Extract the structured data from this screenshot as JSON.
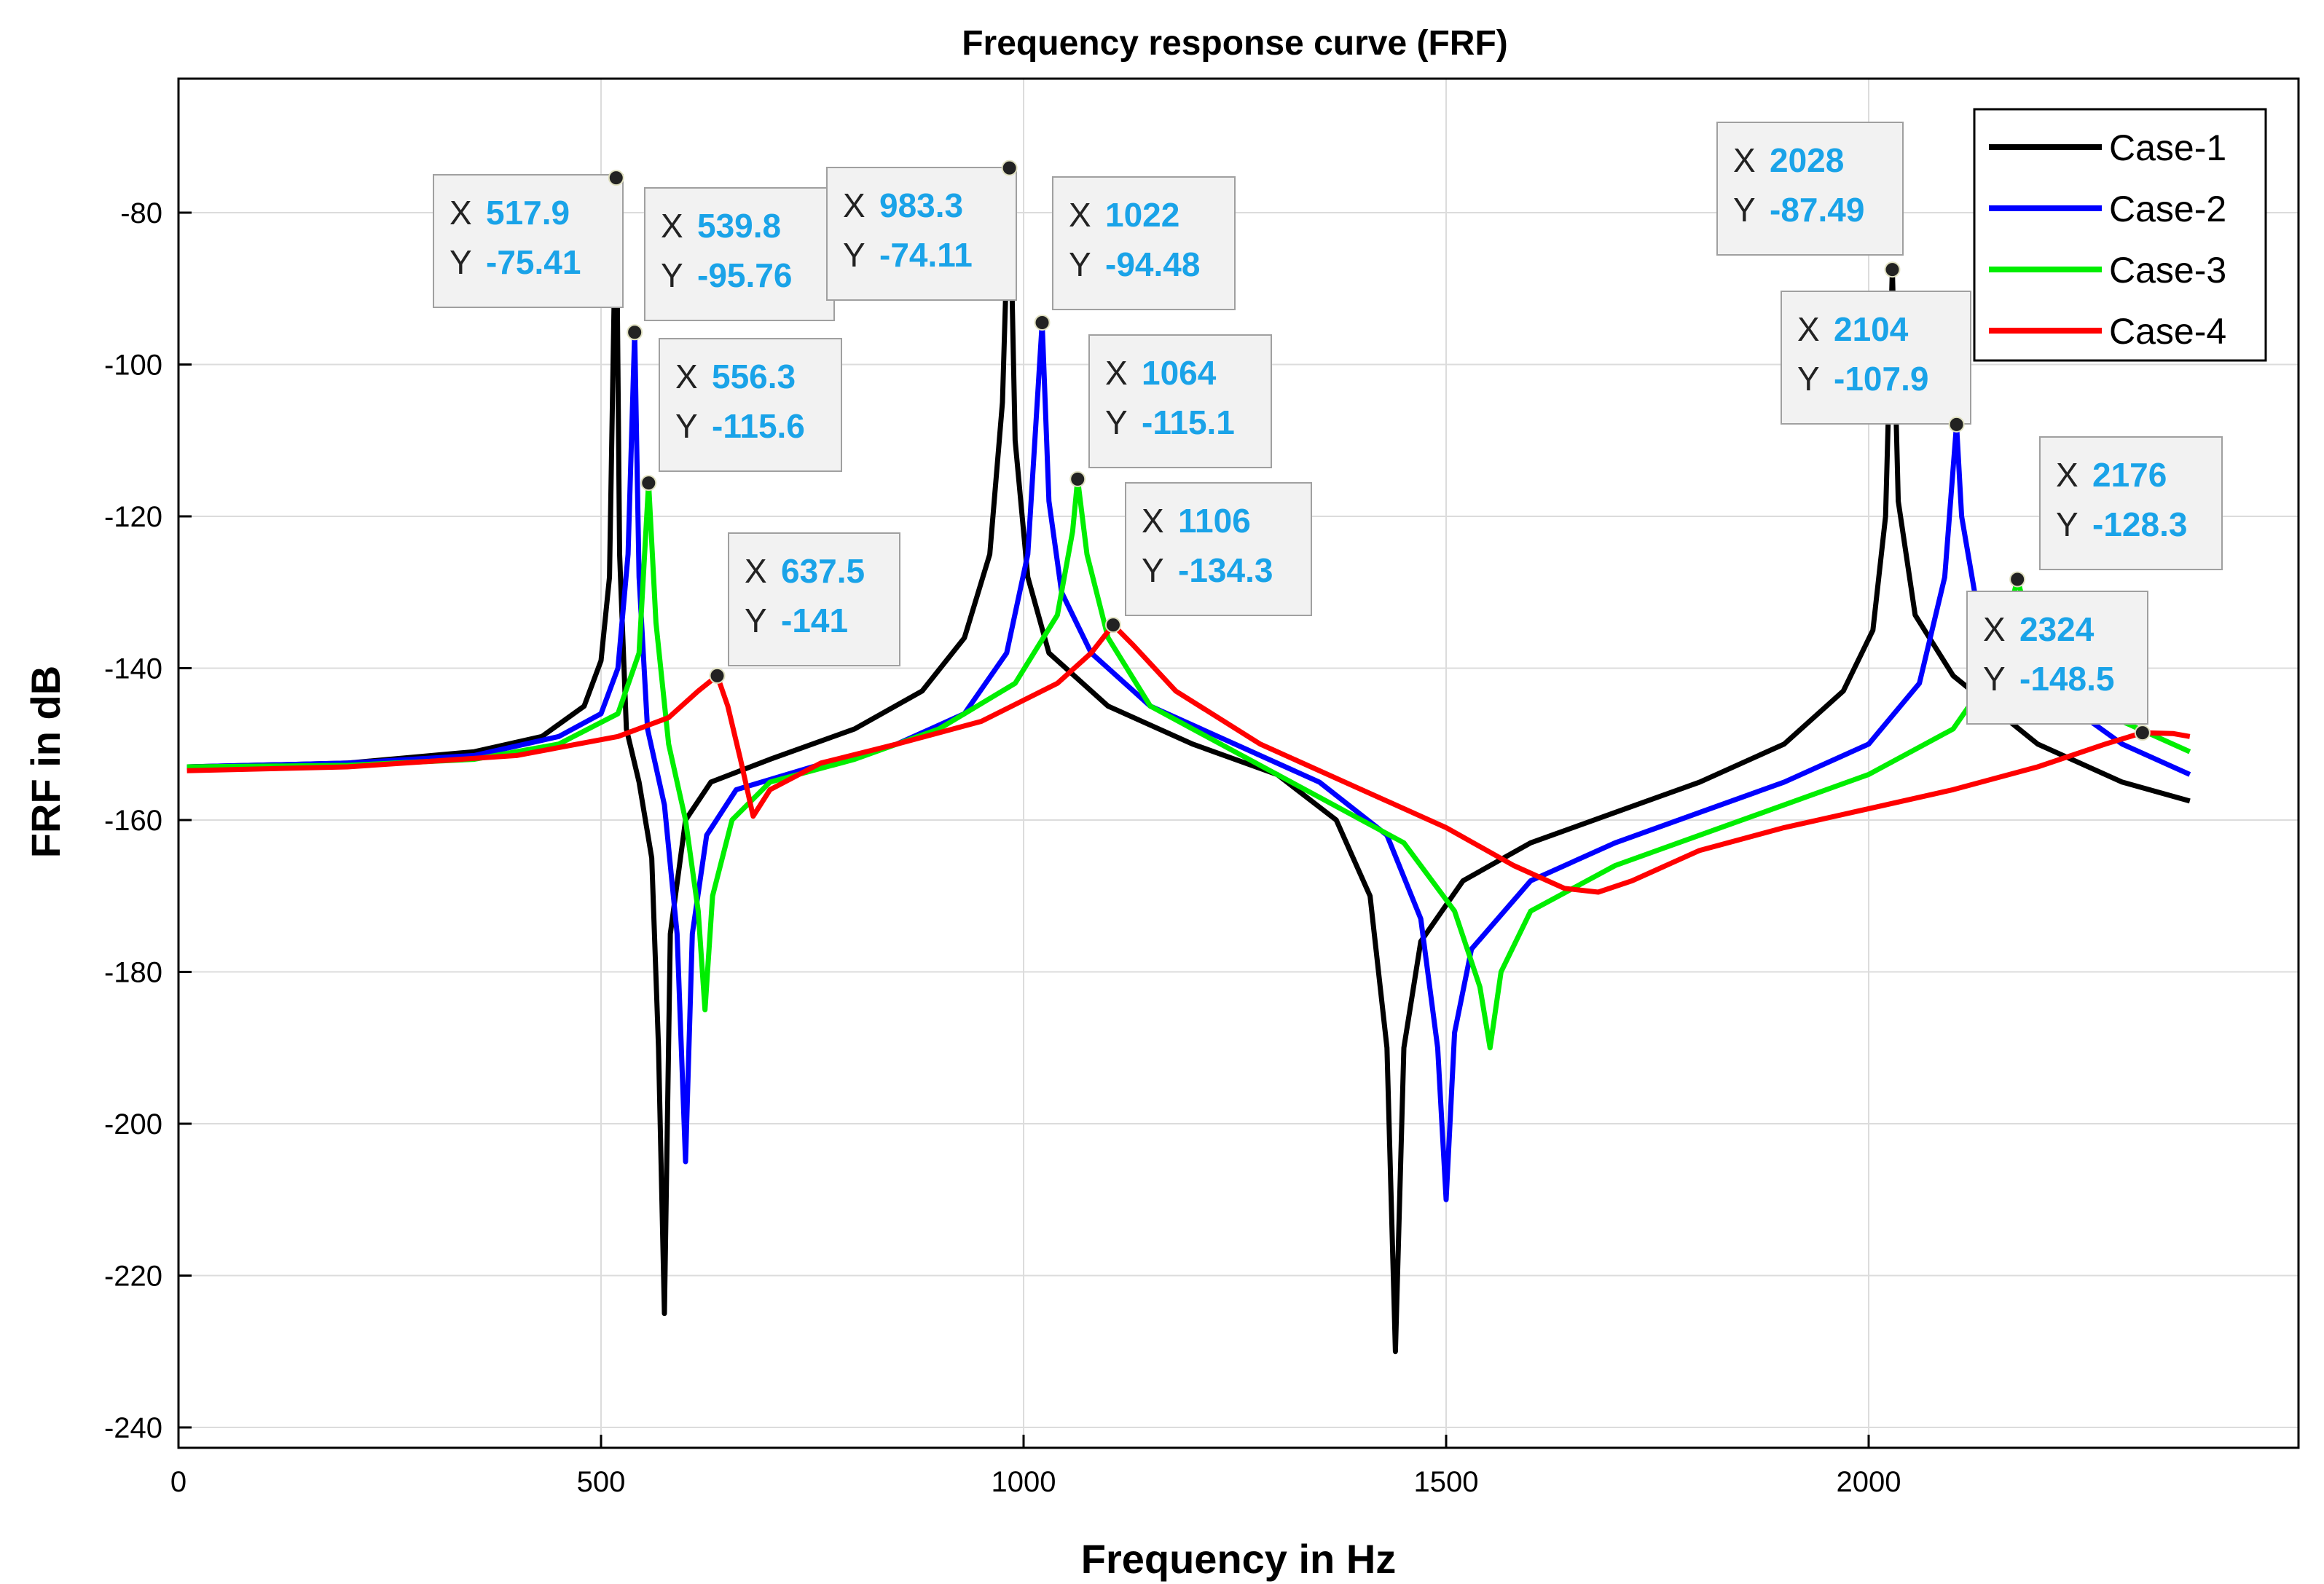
{
  "chart_data": {
    "type": "line",
    "title": "Frequency response curve (FRF)",
    "xlabel": "Frequency in Hz",
    "ylabel": "FRF in dB",
    "xlim": [
      0,
      2500
    ],
    "ylim": [
      -242,
      -65
    ],
    "xticks": [
      0,
      500,
      1000,
      1500,
      2000
    ],
    "yticks": [
      -80,
      -100,
      -120,
      -140,
      -160,
      -180,
      -200,
      -220,
      -240
    ],
    "grid": true,
    "legend_position": "top-right",
    "series": [
      {
        "name": "Case-1",
        "color": "#000000",
        "points": [
          [
            10,
            -153
          ],
          [
            200,
            -152.5
          ],
          [
            350,
            -151
          ],
          [
            430,
            -149
          ],
          [
            480,
            -145
          ],
          [
            500,
            -139
          ],
          [
            510,
            -128
          ],
          [
            517.9,
            -75.41
          ],
          [
            522,
            -125
          ],
          [
            530,
            -148
          ],
          [
            545,
            -155
          ],
          [
            560,
            -165
          ],
          [
            568,
            -190
          ],
          [
            575,
            -225
          ],
          [
            582,
            -175
          ],
          [
            600,
            -160
          ],
          [
            630,
            -155
          ],
          [
            700,
            -152
          ],
          [
            800,
            -148
          ],
          [
            880,
            -143
          ],
          [
            930,
            -136
          ],
          [
            960,
            -125
          ],
          [
            975,
            -105
          ],
          [
            983.3,
            -74.11
          ],
          [
            990,
            -110
          ],
          [
            1005,
            -128
          ],
          [
            1030,
            -138
          ],
          [
            1100,
            -145
          ],
          [
            1200,
            -150
          ],
          [
            1300,
            -154
          ],
          [
            1370,
            -160
          ],
          [
            1410,
            -170
          ],
          [
            1430,
            -190
          ],
          [
            1440,
            -230
          ],
          [
            1450,
            -190
          ],
          [
            1470,
            -176
          ],
          [
            1520,
            -168
          ],
          [
            1600,
            -163
          ],
          [
            1700,
            -159
          ],
          [
            1800,
            -155
          ],
          [
            1900,
            -150
          ],
          [
            1970,
            -143
          ],
          [
            2005,
            -135
          ],
          [
            2020,
            -120
          ],
          [
            2028,
            -87.49
          ],
          [
            2035,
            -118
          ],
          [
            2055,
            -133
          ],
          [
            2100,
            -141
          ],
          [
            2200,
            -150
          ],
          [
            2300,
            -155
          ],
          [
            2380,
            -157.5
          ]
        ]
      },
      {
        "name": "Case-2",
        "color": "#0000ff",
        "points": [
          [
            10,
            -153
          ],
          [
            200,
            -152.5
          ],
          [
            350,
            -151.5
          ],
          [
            450,
            -149
          ],
          [
            500,
            -146
          ],
          [
            520,
            -140
          ],
          [
            532,
            -125
          ],
          [
            539.8,
            -95.76
          ],
          [
            545,
            -128
          ],
          [
            555,
            -148
          ],
          [
            575,
            -158
          ],
          [
            590,
            -175
          ],
          [
            600,
            -205
          ],
          [
            608,
            -175
          ],
          [
            625,
            -162
          ],
          [
            660,
            -156
          ],
          [
            750,
            -153
          ],
          [
            850,
            -150
          ],
          [
            930,
            -146
          ],
          [
            980,
            -138
          ],
          [
            1005,
            -125
          ],
          [
            1022,
            -94.48
          ],
          [
            1030,
            -118
          ],
          [
            1045,
            -130
          ],
          [
            1080,
            -138
          ],
          [
            1150,
            -145
          ],
          [
            1250,
            -150
          ],
          [
            1350,
            -155
          ],
          [
            1430,
            -162
          ],
          [
            1470,
            -173
          ],
          [
            1490,
            -190
          ],
          [
            1500,
            -210
          ],
          [
            1510,
            -188
          ],
          [
            1530,
            -177
          ],
          [
            1600,
            -168
          ],
          [
            1700,
            -163
          ],
          [
            1800,
            -159
          ],
          [
            1900,
            -155
          ],
          [
            2000,
            -150
          ],
          [
            2060,
            -142
          ],
          [
            2090,
            -128
          ],
          [
            2104,
            -107.9
          ],
          [
            2110,
            -120
          ],
          [
            2130,
            -133
          ],
          [
            2200,
            -142
          ],
          [
            2300,
            -150
          ],
          [
            2380,
            -154
          ]
        ]
      },
      {
        "name": "Case-3",
        "color": "#00ee00",
        "points": [
          [
            10,
            -153
          ],
          [
            200,
            -152.8
          ],
          [
            350,
            -152
          ],
          [
            450,
            -150
          ],
          [
            520,
            -146
          ],
          [
            545,
            -138
          ],
          [
            556.3,
            -115.6
          ],
          [
            565,
            -134
          ],
          [
            580,
            -150
          ],
          [
            600,
            -160
          ],
          [
            615,
            -172
          ],
          [
            623,
            -185
          ],
          [
            632,
            -170
          ],
          [
            655,
            -160
          ],
          [
            700,
            -155
          ],
          [
            800,
            -152
          ],
          [
            900,
            -148
          ],
          [
            990,
            -142
          ],
          [
            1040,
            -133
          ],
          [
            1058,
            -122
          ],
          [
            1064,
            -115.1
          ],
          [
            1075,
            -125
          ],
          [
            1100,
            -136
          ],
          [
            1150,
            -145
          ],
          [
            1250,
            -151
          ],
          [
            1350,
            -157
          ],
          [
            1450,
            -163
          ],
          [
            1510,
            -172
          ],
          [
            1540,
            -182
          ],
          [
            1552,
            -190
          ],
          [
            1565,
            -180
          ],
          [
            1600,
            -172
          ],
          [
            1700,
            -166
          ],
          [
            1800,
            -162
          ],
          [
            1900,
            -158
          ],
          [
            2000,
            -154
          ],
          [
            2100,
            -148
          ],
          [
            2150,
            -140
          ],
          [
            2176,
            -128.3
          ],
          [
            2185,
            -132
          ],
          [
            2210,
            -142
          ],
          [
            2300,
            -147
          ],
          [
            2380,
            -151
          ]
        ]
      },
      {
        "name": "Case-4",
        "color": "#ff0000",
        "points": [
          [
            10,
            -153.5
          ],
          [
            200,
            -153
          ],
          [
            400,
            -151.5
          ],
          [
            520,
            -149
          ],
          [
            580,
            -146.5
          ],
          [
            615,
            -143
          ],
          [
            637.5,
            -141
          ],
          [
            650,
            -145
          ],
          [
            665,
            -152
          ],
          [
            680,
            -159.5
          ],
          [
            700,
            -156
          ],
          [
            760,
            -152.5
          ],
          [
            850,
            -150
          ],
          [
            950,
            -147
          ],
          [
            1040,
            -142
          ],
          [
            1080,
            -138
          ],
          [
            1106,
            -134.3
          ],
          [
            1130,
            -137
          ],
          [
            1180,
            -143
          ],
          [
            1280,
            -150
          ],
          [
            1400,
            -156
          ],
          [
            1500,
            -161
          ],
          [
            1580,
            -166
          ],
          [
            1640,
            -169
          ],
          [
            1680,
            -169.5
          ],
          [
            1720,
            -168
          ],
          [
            1800,
            -164
          ],
          [
            1900,
            -161
          ],
          [
            2000,
            -158.5
          ],
          [
            2100,
            -156
          ],
          [
            2200,
            -153
          ],
          [
            2280,
            -150
          ],
          [
            2324,
            -148.5
          ],
          [
            2360,
            -148.6
          ],
          [
            2380,
            -149
          ]
        ]
      }
    ],
    "annotations": [
      {
        "x": 517.9,
        "y": -75.41,
        "xlabel": "517.9",
        "ylabel": "-75.41",
        "series": "Case-1"
      },
      {
        "x": 539.8,
        "y": -95.76,
        "xlabel": "539.8",
        "ylabel": "-95.76",
        "series": "Case-2"
      },
      {
        "x": 556.3,
        "y": -115.6,
        "xlabel": "556.3",
        "ylabel": "-115.6",
        "series": "Case-3"
      },
      {
        "x": 637.5,
        "y": -141,
        "xlabel": "637.5",
        "ylabel": "-141",
        "series": "Case-4"
      },
      {
        "x": 983.3,
        "y": -74.11,
        "xlabel": "983.3",
        "ylabel": "-74.11",
        "series": "Case-1"
      },
      {
        "x": 1022,
        "y": -94.48,
        "xlabel": "1022",
        "ylabel": "-94.48",
        "series": "Case-2"
      },
      {
        "x": 1064,
        "y": -115.1,
        "xlabel": "1064",
        "ylabel": "-115.1",
        "series": "Case-3"
      },
      {
        "x": 1106,
        "y": -134.3,
        "xlabel": "1106",
        "ylabel": "-134.3",
        "series": "Case-4"
      },
      {
        "x": 2028,
        "y": -87.49,
        "xlabel": "2028",
        "ylabel": "-87.49",
        "series": "Case-1"
      },
      {
        "x": 2104,
        "y": -107.9,
        "xlabel": "2104",
        "ylabel": "-107.9",
        "series": "Case-2"
      },
      {
        "x": 2176,
        "y": -128.3,
        "xlabel": "2176",
        "ylabel": "-128.3",
        "series": "Case-3"
      },
      {
        "x": 2324,
        "y": -148.5,
        "xlabel": "2324",
        "ylabel": "-148.5",
        "series": "Case-4"
      }
    ],
    "datatip_x_key": "X",
    "datatip_y_key": "Y"
  }
}
